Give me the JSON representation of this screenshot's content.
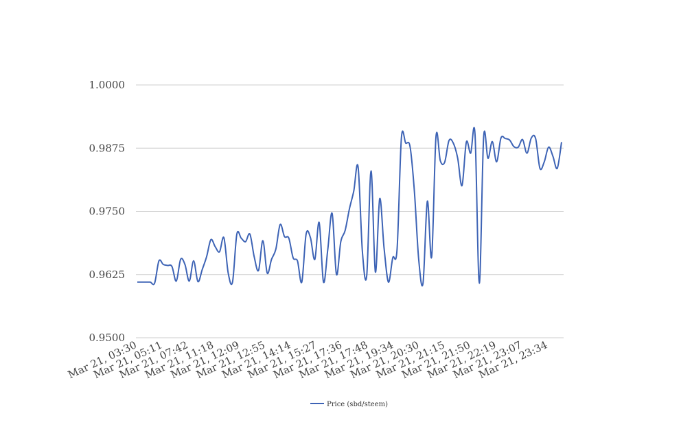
{
  "chart_data": {
    "type": "line",
    "title": "",
    "xlabel": "",
    "ylabel": "",
    "ylim": [
      0.95,
      1.0
    ],
    "y_ticks": [
      "0.9500",
      "0.9625",
      "0.9750",
      "0.9875",
      "1.0000"
    ],
    "x_ticks": [
      "Mar 21, 03:30",
      "Mar 21, 05:11",
      "Mar 21, 07:42",
      "Mar 21, 11:18",
      "Mar 21, 12:09",
      "Mar 21, 12:55",
      "Mar 21, 14:14",
      "Mar 21, 15:27",
      "Mar 21, 17:36",
      "Mar 21, 17:48",
      "Mar 21, 19:34",
      "Mar 21, 20:30",
      "Mar 21, 21:15",
      "Mar 21, 21:50",
      "Mar 21, 22:19",
      "Mar 21, 23:07",
      "Mar 21, 23:34"
    ],
    "grid": "horizontal",
    "legend_position": "bottom",
    "series": [
      {
        "name": "Price (sbd/steem)",
        "color": "#3d63b5",
        "values": [
          0.961,
          0.961,
          0.961,
          0.961,
          0.9608,
          0.9652,
          0.9645,
          0.9643,
          0.9641,
          0.9612,
          0.9655,
          0.9645,
          0.9612,
          0.9652,
          0.9611,
          0.9635,
          0.966,
          0.9694,
          0.968,
          0.967,
          0.9698,
          0.9628,
          0.961,
          0.9705,
          0.9697,
          0.969,
          0.9705,
          0.966,
          0.9633,
          0.9692,
          0.9628,
          0.9655,
          0.9675,
          0.9724,
          0.97,
          0.9697,
          0.9658,
          0.9652,
          0.961,
          0.9705,
          0.9698,
          0.9655,
          0.9728,
          0.961,
          0.9675,
          0.9746,
          0.9625,
          0.969,
          0.9712,
          0.9755,
          0.979,
          0.9838,
          0.967,
          0.9623,
          0.983,
          0.963,
          0.9775,
          0.9678,
          0.961,
          0.9658,
          0.9675,
          0.9895,
          0.9885,
          0.9878,
          0.979,
          0.9655,
          0.9608,
          0.977,
          0.966,
          0.9898,
          0.985,
          0.9847,
          0.989,
          0.9885,
          0.9855,
          0.9801,
          0.9887,
          0.9865,
          0.9903,
          0.9608,
          0.9897,
          0.9855,
          0.9888,
          0.9848,
          0.9895,
          0.9894,
          0.9891,
          0.9878,
          0.9877,
          0.9892,
          0.9865,
          0.9895,
          0.9894,
          0.9835,
          0.9848,
          0.9877,
          0.9859,
          0.9835,
          0.9887
        ]
      }
    ]
  }
}
